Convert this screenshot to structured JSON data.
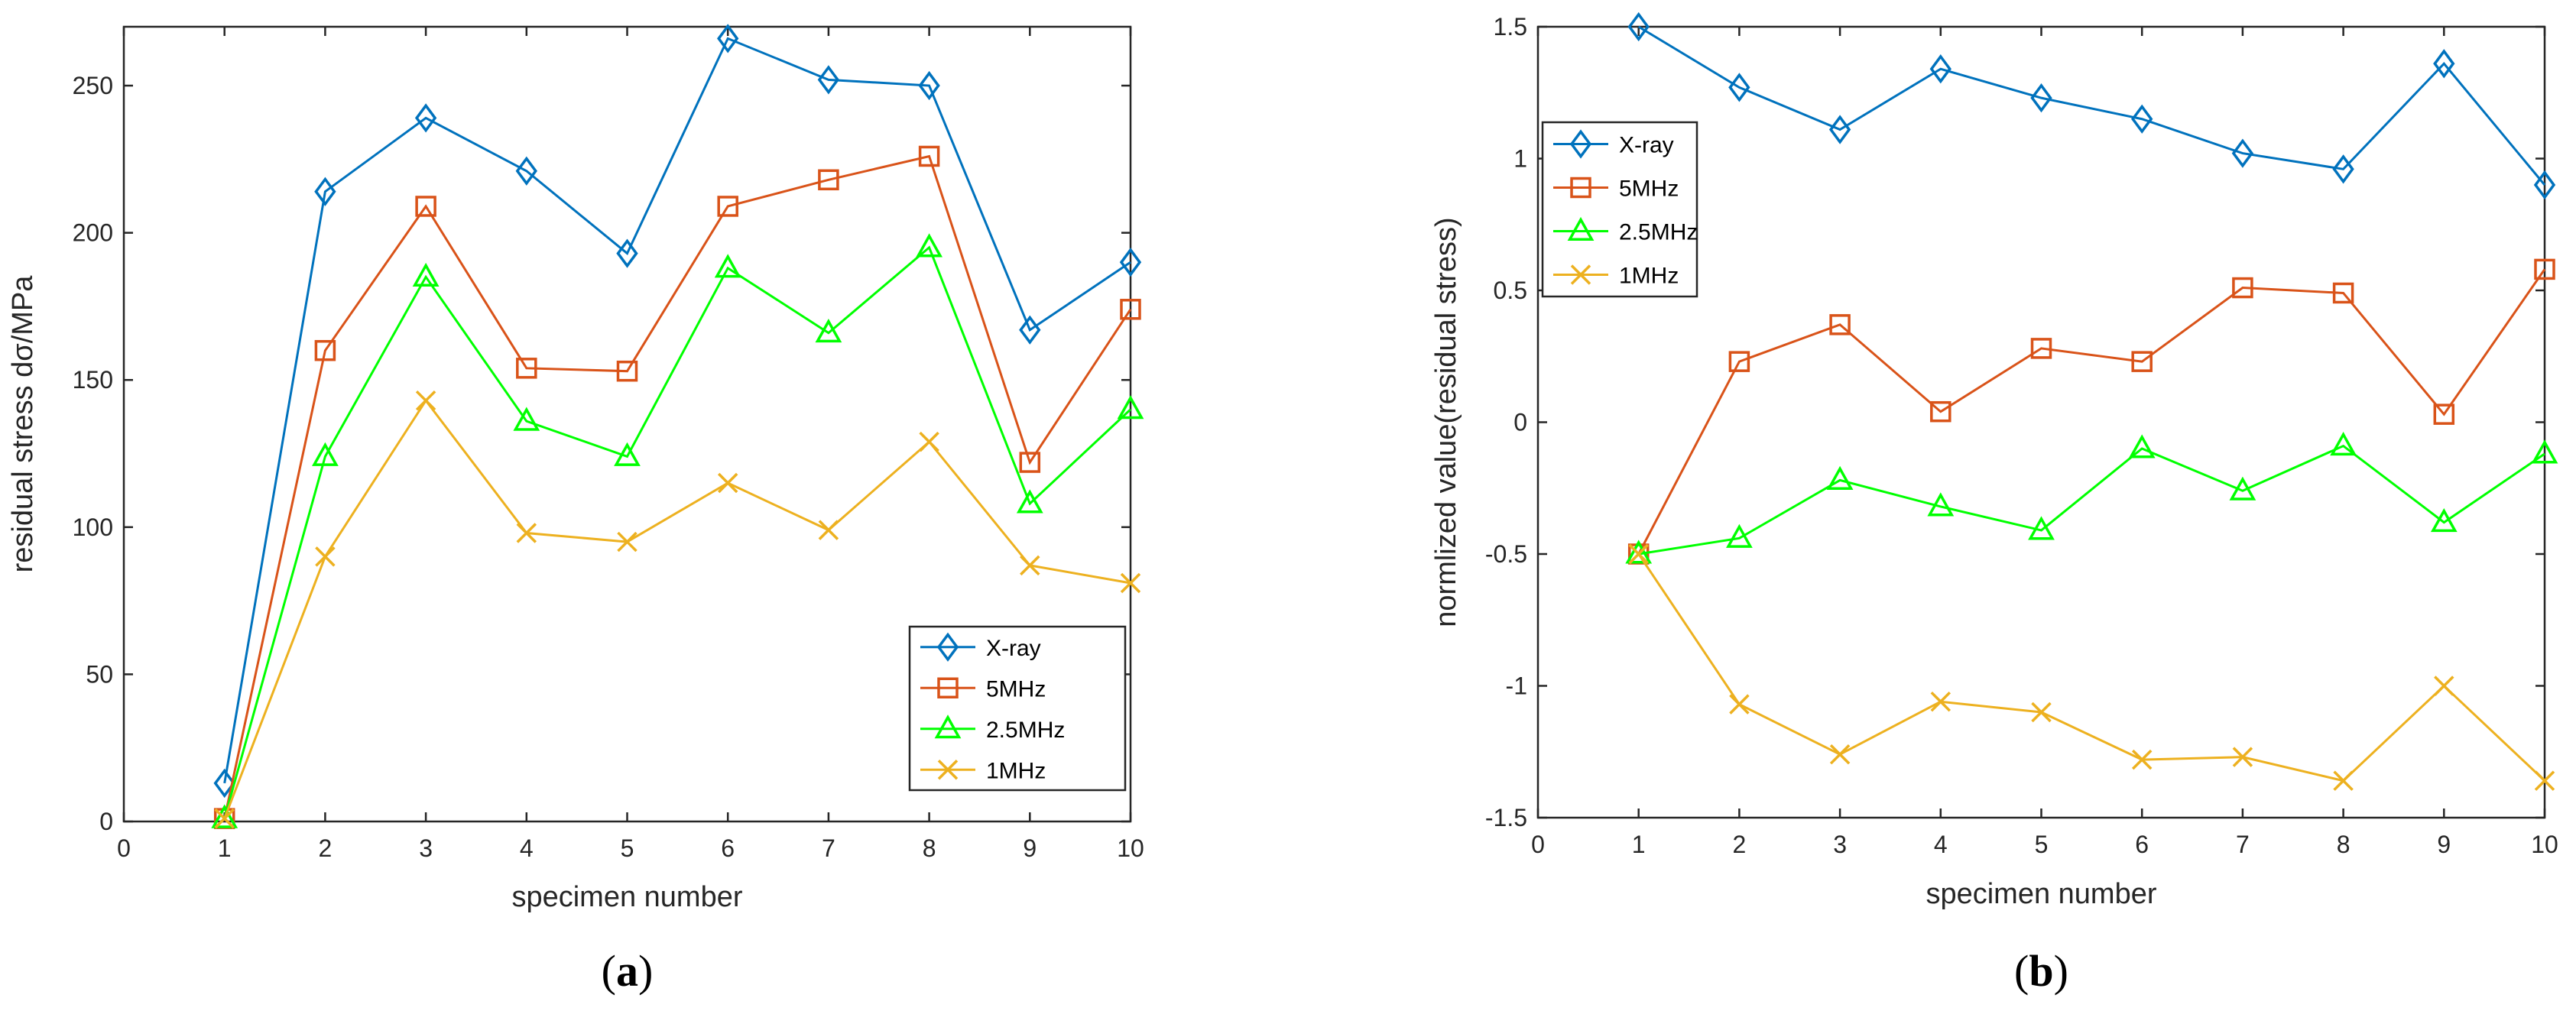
{
  "chart_data": [
    {
      "type": "line",
      "panel": "a",
      "caption": {
        "open": "(",
        "letter": "a",
        "close": ")"
      },
      "xlabel": "specimen number",
      "ylabel": "residual stress dσ/MPa",
      "xlim": [
        0,
        10
      ],
      "ylim": [
        0,
        270
      ],
      "xticks": [
        0,
        1,
        2,
        3,
        4,
        5,
        6,
        7,
        8,
        9,
        10
      ],
      "yticks": [
        0,
        50,
        100,
        150,
        200,
        250
      ],
      "ytick_labels": [
        "0",
        "50",
        "100",
        "150",
        "200",
        "250"
      ],
      "legend_position": "bottom-right",
      "x": [
        1,
        2,
        3,
        4,
        5,
        6,
        7,
        8,
        9,
        10
      ],
      "series": [
        {
          "name": "X-ray",
          "color": "#0072BD",
          "marker": "diamond",
          "values": [
            13,
            214,
            239,
            221,
            193,
            266,
            252,
            250,
            167,
            190
          ]
        },
        {
          "name": "5MHz",
          "color": "#D95319",
          "marker": "square",
          "values": [
            1,
            160,
            209,
            154,
            153,
            209,
            218,
            226,
            122,
            174
          ]
        },
        {
          "name": "2.5MHz",
          "color": "#00FF00",
          "marker": "triangle",
          "values": [
            1,
            124,
            185,
            136,
            124,
            188,
            166,
            195,
            108,
            140
          ]
        },
        {
          "name": "1MHz",
          "color": "#EDB120",
          "marker": "x",
          "values": [
            1,
            90,
            143,
            98,
            95,
            115,
            99,
            129,
            87,
            81
          ]
        }
      ]
    },
    {
      "type": "line",
      "panel": "b",
      "caption": {
        "open": "(",
        "letter": "b",
        "close": ")"
      },
      "xlabel": "specimen number",
      "ylabel": "normlized value(residual stress)",
      "xlim": [
        0,
        10
      ],
      "ylim": [
        -1.5,
        1.5
      ],
      "xticks": [
        0,
        1,
        2,
        3,
        4,
        5,
        6,
        7,
        8,
        9,
        10
      ],
      "yticks": [
        -1.5,
        -1,
        -0.5,
        0,
        0.5,
        1,
        1.5
      ],
      "ytick_labels": [
        "-1.5",
        "-1",
        "-0.5",
        "0",
        "0.5",
        "1",
        "1.5"
      ],
      "legend_position": "top-left",
      "x": [
        1,
        2,
        3,
        4,
        5,
        6,
        7,
        8,
        9,
        10
      ],
      "series": [
        {
          "name": "X-ray",
          "color": "#0072BD",
          "marker": "diamond",
          "values": [
            1.5,
            1.27,
            1.11,
            1.34,
            1.23,
            1.15,
            1.02,
            0.96,
            1.36,
            0.9
          ]
        },
        {
          "name": "5MHz",
          "color": "#D95319",
          "marker": "square",
          "values": [
            -0.5,
            0.23,
            0.37,
            0.04,
            0.28,
            0.23,
            0.51,
            0.49,
            0.03,
            0.58
          ]
        },
        {
          "name": "2.5MHz",
          "color": "#00FF00",
          "marker": "triangle",
          "values": [
            -0.5,
            -0.44,
            -0.22,
            -0.32,
            -0.41,
            -0.1,
            -0.26,
            -0.09,
            -0.38,
            -0.12
          ]
        },
        {
          "name": "1MHz",
          "color": "#EDB120",
          "marker": "x",
          "values": [
            -0.5,
            -1.07,
            -1.26,
            -1.06,
            -1.1,
            -1.28,
            -1.27,
            -1.36,
            -1.0,
            -1.36
          ]
        }
      ]
    }
  ]
}
